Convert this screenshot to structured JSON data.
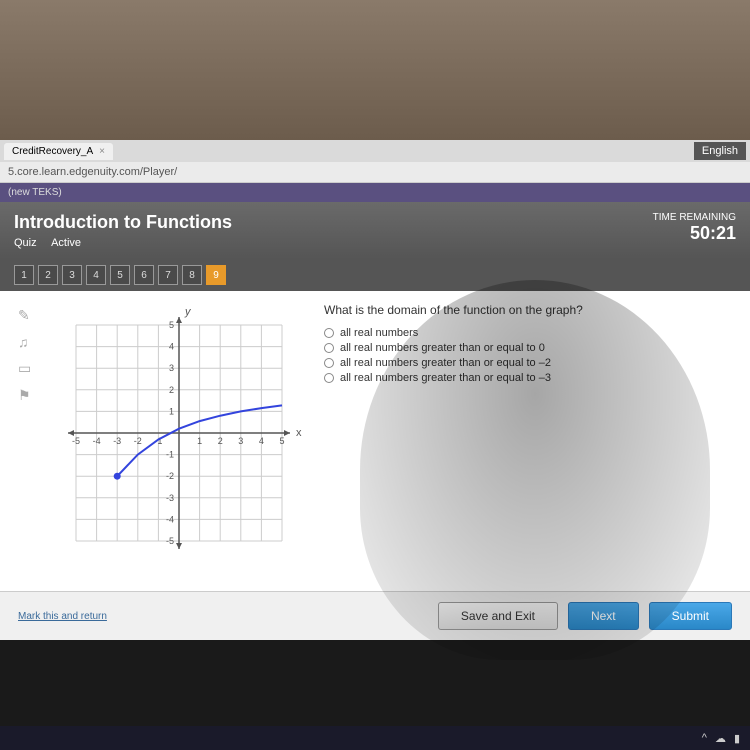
{
  "browser": {
    "tab_title": "CreditRecovery_A",
    "url": "5.core.learn.edgenuity.com/Player/",
    "language": "English"
  },
  "breadcrumb": "(new TEKS)",
  "header": {
    "title": "Introduction to Functions",
    "quiz_label": "Quiz",
    "status": "Active",
    "timer_label": "TIME REMAINING",
    "timer_value": "50:21"
  },
  "nav": {
    "items": [
      "1",
      "2",
      "3",
      "4",
      "5",
      "6",
      "7",
      "8",
      "9"
    ],
    "active_index": 8
  },
  "question": {
    "prompt": "What is the domain of the function on the graph?",
    "options": [
      "all real numbers",
      "all real numbers greater than or equal to 0",
      "all real numbers greater than or equal to –2",
      "all real numbers greater than or equal to –3"
    ]
  },
  "graph": {
    "xlim": [
      -5,
      5
    ],
    "ylim": [
      -5,
      5
    ],
    "x_ticks": [
      -5,
      -4,
      -3,
      -2,
      -1,
      1,
      2,
      3,
      4,
      5
    ],
    "y_ticks": [
      -5,
      -4,
      -3,
      -2,
      -1,
      1,
      2,
      3,
      4,
      5
    ],
    "x_label": "x",
    "y_label": "y",
    "grid_color": "#cccccc",
    "axis_color": "#555555",
    "curve_color": "#3344dd",
    "endpoint_color": "#3344dd",
    "background": "#ffffff",
    "curve_points": [
      [
        -3,
        -2
      ],
      [
        -2,
        -1
      ],
      [
        -1,
        -0.3
      ],
      [
        0,
        0.2
      ],
      [
        1,
        0.55
      ],
      [
        2,
        0.8
      ],
      [
        3,
        1.0
      ],
      [
        4,
        1.15
      ],
      [
        5,
        1.28
      ]
    ],
    "endpoint": [
      -3,
      -2
    ],
    "tick_fontsize": 9
  },
  "footer": {
    "mark_link": "Mark this and return",
    "save_exit": "Save and Exit",
    "next": "Next",
    "submit": "Submit"
  },
  "colors": {
    "header_bg": "#5a5a5a",
    "active_q": "#e89a2a",
    "btn_blue": "#3a98d8"
  }
}
